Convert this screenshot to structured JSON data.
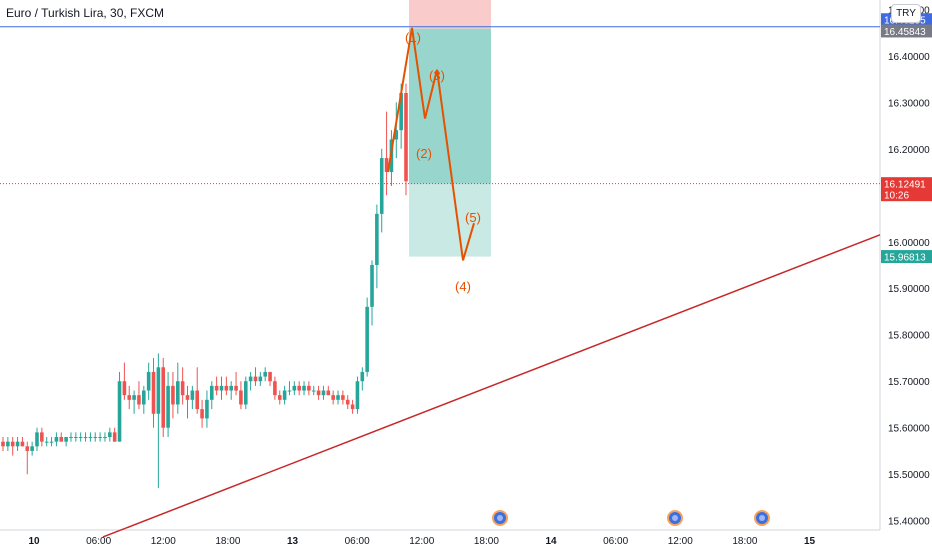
{
  "header": {
    "title": "Euro / Turkish Lira, 30, FXCM",
    "currency_button": "TRY"
  },
  "colors": {
    "up": "#26a69a",
    "down": "#ef5350",
    "trend": "#c62828",
    "wave": "#e65100",
    "hline": "#3f6ae0",
    "profit_zone": "#86cfc4",
    "stop_zone": "#f8b9b9",
    "current_price": "#e53935",
    "entry_price": "#787b86",
    "event_icon": "#3d6fe0"
  },
  "chart_data": {
    "type": "candlestick",
    "symbol": "Euro / Turkish Lira, 30, FXCM",
    "ylim": [
      15.38,
      16.52
    ],
    "y_ticks": [
      "15.40000",
      "15.50000",
      "15.60000",
      "15.70000",
      "15.80000",
      "15.90000",
      "16.00000",
      "16.10000",
      "16.20000",
      "16.30000",
      "16.40000",
      "16.50000"
    ],
    "x_ticks": [
      "10",
      "06:00",
      "12:00",
      "18:00",
      "13",
      "06:00",
      "12:00",
      "18:00",
      "14",
      "06:00",
      "12:00",
      "18:00",
      "15"
    ],
    "price_labels": {
      "horizontal_line": "16.46255",
      "entry": "16.45843",
      "current": "16.12491",
      "countdown": "10:26",
      "target": "15.96813"
    },
    "horizontal_line_price": 16.46255,
    "position": {
      "entry": 16.45843,
      "target": 15.96813,
      "stop": 16.52,
      "type": "short"
    },
    "trendline": {
      "start": [
        "10 05:00",
        15.365
      ],
      "end": [
        "14 20:30",
        16.015
      ]
    },
    "wave_labels": [
      "(1)",
      "(2)",
      "(3)",
      "(4)",
      "(5)"
    ],
    "wave_points": [
      [
        16.45,
        16.46
      ],
      [
        16.61,
        16.265
      ],
      [
        16.75,
        16.37
      ],
      [
        17.32,
        15.96
      ],
      [
        17.5,
        16.04
      ]
    ],
    "candles": [
      [
        15.57,
        15.58,
        15.55,
        15.56
      ],
      [
        15.56,
        15.58,
        15.55,
        15.57
      ],
      [
        15.57,
        15.58,
        15.54,
        15.56
      ],
      [
        15.56,
        15.58,
        15.55,
        15.57
      ],
      [
        15.57,
        15.58,
        15.56,
        15.56
      ],
      [
        15.56,
        15.57,
        15.5,
        15.55
      ],
      [
        15.55,
        15.57,
        15.54,
        15.56
      ],
      [
        15.56,
        15.6,
        15.55,
        15.59
      ],
      [
        15.59,
        15.6,
        15.56,
        15.57
      ],
      [
        15.57,
        15.58,
        15.56,
        15.57
      ],
      [
        15.57,
        15.58,
        15.56,
        15.57
      ],
      [
        15.57,
        15.59,
        15.56,
        15.58
      ],
      [
        15.58,
        15.59,
        15.57,
        15.57
      ],
      [
        15.57,
        15.58,
        15.56,
        15.58
      ],
      [
        15.58,
        15.59,
        15.57,
        15.58
      ],
      [
        15.58,
        15.59,
        15.57,
        15.58
      ],
      [
        15.58,
        15.59,
        15.57,
        15.58
      ],
      [
        15.58,
        15.59,
        15.57,
        15.58
      ],
      [
        15.58,
        15.59,
        15.57,
        15.58
      ],
      [
        15.58,
        15.59,
        15.57,
        15.58
      ],
      [
        15.58,
        15.59,
        15.57,
        15.58
      ],
      [
        15.58,
        15.59,
        15.57,
        15.58
      ],
      [
        15.58,
        15.6,
        15.57,
        15.59
      ],
      [
        15.59,
        15.6,
        15.57,
        15.57
      ],
      [
        15.57,
        15.72,
        15.57,
        15.7
      ],
      [
        15.7,
        15.74,
        15.66,
        15.67
      ],
      [
        15.67,
        15.69,
        15.64,
        15.66
      ],
      [
        15.66,
        15.68,
        15.63,
        15.67
      ],
      [
        15.67,
        15.7,
        15.64,
        15.65
      ],
      [
        15.65,
        15.69,
        15.63,
        15.68
      ],
      [
        15.68,
        15.74,
        15.66,
        15.72
      ],
      [
        15.72,
        15.75,
        15.6,
        15.63
      ],
      [
        15.63,
        15.76,
        15.47,
        15.73
      ],
      [
        15.73,
        15.75,
        15.58,
        15.6
      ],
      [
        15.6,
        15.72,
        15.58,
        15.69
      ],
      [
        15.69,
        15.72,
        15.62,
        15.65
      ],
      [
        15.65,
        15.74,
        15.63,
        15.7
      ],
      [
        15.7,
        15.73,
        15.65,
        15.67
      ],
      [
        15.67,
        15.69,
        15.62,
        15.66
      ],
      [
        15.66,
        15.69,
        15.64,
        15.68
      ],
      [
        15.68,
        15.73,
        15.63,
        15.64
      ],
      [
        15.64,
        15.66,
        15.6,
        15.62
      ],
      [
        15.62,
        15.68,
        15.6,
        15.66
      ],
      [
        15.66,
        15.7,
        15.64,
        15.69
      ],
      [
        15.69,
        15.71,
        15.67,
        15.68
      ],
      [
        15.68,
        15.71,
        15.66,
        15.69
      ],
      [
        15.69,
        15.71,
        15.67,
        15.68
      ],
      [
        15.68,
        15.7,
        15.66,
        15.69
      ],
      [
        15.69,
        15.72,
        15.67,
        15.68
      ],
      [
        15.68,
        15.7,
        15.64,
        15.65
      ],
      [
        15.65,
        15.71,
        15.64,
        15.7
      ],
      [
        15.7,
        15.72,
        15.68,
        15.71
      ],
      [
        15.71,
        15.73,
        15.69,
        15.7
      ],
      [
        15.7,
        15.72,
        15.69,
        15.71
      ],
      [
        15.71,
        15.73,
        15.7,
        15.72
      ],
      [
        15.72,
        15.72,
        15.69,
        15.7
      ],
      [
        15.7,
        15.71,
        15.66,
        15.67
      ],
      [
        15.67,
        15.68,
        15.65,
        15.66
      ],
      [
        15.66,
        15.69,
        15.65,
        15.68
      ],
      [
        15.68,
        15.7,
        15.67,
        15.68
      ],
      [
        15.68,
        15.7,
        15.67,
        15.69
      ],
      [
        15.69,
        15.7,
        15.67,
        15.68
      ],
      [
        15.68,
        15.7,
        15.67,
        15.69
      ],
      [
        15.69,
        15.7,
        15.67,
        15.68
      ],
      [
        15.68,
        15.69,
        15.67,
        15.68
      ],
      [
        15.68,
        15.69,
        15.66,
        15.67
      ],
      [
        15.67,
        15.69,
        15.66,
        15.68
      ],
      [
        15.68,
        15.69,
        15.67,
        15.67
      ],
      [
        15.67,
        15.68,
        15.65,
        15.66
      ],
      [
        15.66,
        15.68,
        15.65,
        15.67
      ],
      [
        15.67,
        15.68,
        15.65,
        15.66
      ],
      [
        15.66,
        15.67,
        15.64,
        15.65
      ],
      [
        15.65,
        15.66,
        15.63,
        15.64
      ],
      [
        15.64,
        15.71,
        15.63,
        15.7
      ],
      [
        15.7,
        15.73,
        15.68,
        15.72
      ],
      [
        15.72,
        15.88,
        15.71,
        15.86
      ],
      [
        15.86,
        15.96,
        15.82,
        15.95
      ],
      [
        15.95,
        16.08,
        15.9,
        16.06
      ],
      [
        16.06,
        16.2,
        16.02,
        16.18
      ],
      [
        16.18,
        16.28,
        16.1,
        16.15
      ],
      [
        16.15,
        16.24,
        16.12,
        16.22
      ],
      [
        16.22,
        16.3,
        16.18,
        16.24
      ],
      [
        16.24,
        16.34,
        16.2,
        16.32
      ],
      [
        16.32,
        16.34,
        16.1,
        16.13
      ]
    ],
    "event_icons": [
      3,
      7,
      8
    ]
  }
}
